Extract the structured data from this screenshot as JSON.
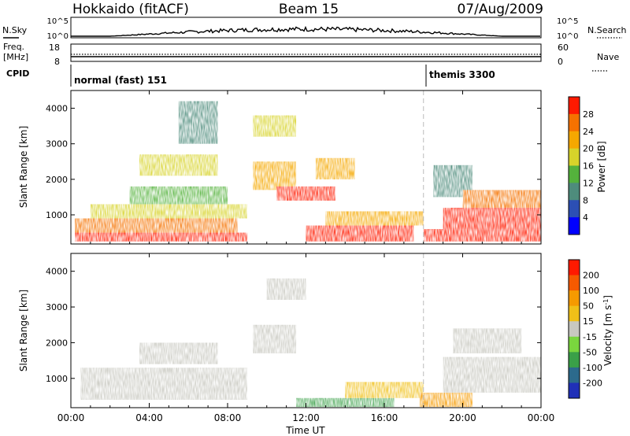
{
  "header": {
    "title": "Hokkaido (fitACF)",
    "beam": "Beam 15",
    "date": "07/Aug/2009"
  },
  "strip": {
    "nsky_label": "N.Sky",
    "nsky_ticks": [
      "10^5",
      "10^0"
    ],
    "nsearch_label": "N.Search",
    "nsearch_ticks": [
      "10^5",
      "10^0"
    ],
    "freq_label": "Freq.",
    "freq_unit": "[MHz]",
    "freq_ticks": [
      "18",
      "8"
    ],
    "nave_label": "Nave",
    "nave_ticks": [
      "60",
      "0"
    ],
    "cpid_label": "CPID",
    "cpid_programs": [
      {
        "name": "normal (fast) 151",
        "start_hour": 0
      },
      {
        "name": "themis 3300",
        "start_hour": 18
      }
    ]
  },
  "chart_data": [
    {
      "type": "heatmap",
      "panel": "power",
      "ylabel": "Slant Range [km]",
      "yticks": [
        "1000",
        "2000",
        "3000",
        "4000"
      ],
      "ylim": [
        180,
        4500
      ],
      "xlim": [
        0,
        24
      ],
      "colorbar_label": "Power [dB]",
      "colorbar_ticks": [
        "4",
        "8",
        "12",
        "16",
        "20",
        "24",
        "28"
      ],
      "colorbar_colors": [
        "#0000ff",
        "#2c4fb4",
        "#4e8c7c",
        "#54b23c",
        "#d7d32a",
        "#f5a800",
        "#f57200",
        "#ff1a00"
      ],
      "vertical_marker_hour": 18,
      "regions": [
        {
          "x": [
            0.2,
            9.0
          ],
          "y": [
            250,
            500
          ],
          "level": 7
        },
        {
          "x": [
            0.2,
            8.5
          ],
          "y": [
            500,
            900
          ],
          "level": 6
        },
        {
          "x": [
            1.0,
            9.0
          ],
          "y": [
            900,
            1300
          ],
          "level": 4
        },
        {
          "x": [
            3.0,
            8.0
          ],
          "y": [
            1300,
            1800
          ],
          "level": 3
        },
        {
          "x": [
            3.5,
            7.5
          ],
          "y": [
            2100,
            2700
          ],
          "level": 4
        },
        {
          "x": [
            5.5,
            7.5
          ],
          "y": [
            3000,
            4200
          ],
          "level": 2
        },
        {
          "x": [
            9.3,
            11.5
          ],
          "y": [
            1700,
            2500
          ],
          "level": 5
        },
        {
          "x": [
            10.5,
            13.5
          ],
          "y": [
            1400,
            1800
          ],
          "level": 7
        },
        {
          "x": [
            9.3,
            11.5
          ],
          "y": [
            3200,
            3800
          ],
          "level": 4
        },
        {
          "x": [
            12.0,
            17.5
          ],
          "y": [
            250,
            700
          ],
          "level": 7
        },
        {
          "x": [
            13.0,
            18.0
          ],
          "y": [
            700,
            1100
          ],
          "level": 5
        },
        {
          "x": [
            12.5,
            14.5
          ],
          "y": [
            2000,
            2600
          ],
          "level": 5
        },
        {
          "x": [
            18.0,
            24.0
          ],
          "y": [
            250,
            600
          ],
          "level": 7
        },
        {
          "x": [
            19.0,
            24.0
          ],
          "y": [
            600,
            1200
          ],
          "level": 7
        },
        {
          "x": [
            18.5,
            20.5
          ],
          "y": [
            1500,
            2400
          ],
          "level": 2
        },
        {
          "x": [
            20.0,
            24.0
          ],
          "y": [
            1200,
            1700
          ],
          "level": 6
        }
      ]
    },
    {
      "type": "heatmap",
      "panel": "velocity",
      "ylabel": "Slant Range [km]",
      "yticks": [
        "1000",
        "2000",
        "3000",
        "4000"
      ],
      "ylim": [
        180,
        4500
      ],
      "xlim": [
        0,
        24
      ],
      "xticks": [
        "00:00",
        "04:00",
        "08:00",
        "12:00",
        "16:00",
        "20:00",
        "00:00"
      ],
      "xlabel": "Time UT",
      "colorbar_label": "Velocity [m s^-1]",
      "colorbar_ticks": [
        "200",
        "100",
        "50",
        "15",
        "-15",
        "-50",
        "-100",
        "-200"
      ],
      "colorbar_colors": [
        "#2030b8",
        "#2c6a8c",
        "#3aa048",
        "#7ad63e",
        "#c8c8c0",
        "#f0c018",
        "#f59a00",
        "#f55a00",
        "#ff1a00"
      ],
      "vertical_marker_hour": 18,
      "regions": [
        {
          "x": [
            0.5,
            9.0
          ],
          "y": [
            400,
            1300
          ],
          "level": 4
        },
        {
          "x": [
            3.5,
            7.5
          ],
          "y": [
            1400,
            2000
          ],
          "level": 4
        },
        {
          "x": [
            9.3,
            11.5
          ],
          "y": [
            1700,
            2500
          ],
          "level": 4
        },
        {
          "x": [
            10.0,
            12.0
          ],
          "y": [
            3200,
            3800
          ],
          "level": 4
        },
        {
          "x": [
            11.5,
            16.5
          ],
          "y": [
            200,
            450
          ],
          "level": 2
        },
        {
          "x": [
            14.0,
            18.0
          ],
          "y": [
            450,
            900
          ],
          "level": 5
        },
        {
          "x": [
            17.8,
            20.5
          ],
          "y": [
            200,
            600
          ],
          "level": 6
        },
        {
          "x": [
            19.0,
            24.0
          ],
          "y": [
            600,
            1600
          ],
          "level": 4
        },
        {
          "x": [
            19.5,
            23.0
          ],
          "y": [
            1700,
            2400
          ],
          "level": 4
        }
      ]
    }
  ]
}
